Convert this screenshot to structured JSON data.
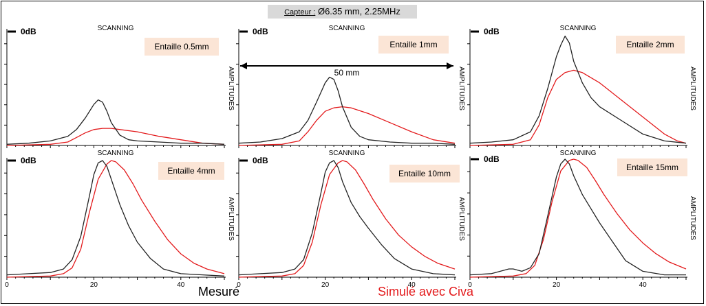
{
  "header": {
    "capteur_label": "Capteur :",
    "capteur_value": "Ø6.35 mm, 2.25MHz"
  },
  "footer": {
    "measured_label": "Mesuré",
    "simulated_label": "Simulé avec Civa"
  },
  "colors": {
    "measured": "#222222",
    "simulated": "#e31a1c",
    "label_bg": "#fbe5d6"
  },
  "chart_data": [
    {
      "type": "line",
      "title": "Entaille 0.5mm",
      "xlabel": "SCANNING",
      "ylabel": "AMPLITUDES",
      "ref_label": "0dB",
      "xlim": [
        0,
        50
      ],
      "ylim": [
        0,
        1
      ],
      "series": [
        {
          "name": "Mesuré",
          "x": [
            0,
            5,
            10,
            14,
            16,
            18,
            20,
            21,
            22,
            23,
            24,
            26,
            28,
            30,
            35,
            40,
            45,
            50
          ],
          "y": [
            0.01,
            0.02,
            0.04,
            0.08,
            0.14,
            0.24,
            0.36,
            0.4,
            0.38,
            0.3,
            0.2,
            0.09,
            0.05,
            0.04,
            0.03,
            0.02,
            0.02,
            0.01
          ]
        },
        {
          "name": "Simulé avec Civa",
          "x": [
            0,
            10,
            14,
            16,
            18,
            20,
            22,
            24,
            26,
            30,
            35,
            40,
            45,
            50
          ],
          "y": [
            0,
            0.01,
            0.03,
            0.07,
            0.11,
            0.14,
            0.15,
            0.15,
            0.14,
            0.12,
            0.08,
            0.05,
            0.02,
            0.01
          ]
        }
      ]
    },
    {
      "type": "line",
      "title": "Entaille 1mm",
      "xlabel": "SCANNING",
      "ylabel": "AMPLITUDES",
      "ref_label": "0dB",
      "xlim": [
        0,
        50
      ],
      "ylim": [
        0,
        1
      ],
      "annotation": {
        "text": "50 mm",
        "from": 0,
        "to": 50
      },
      "series": [
        {
          "name": "Mesuré",
          "x": [
            0,
            5,
            10,
            14,
            16,
            18,
            20,
            21,
            22,
            23,
            24,
            26,
            28,
            30,
            35,
            40,
            45,
            50
          ],
          "y": [
            0.02,
            0.03,
            0.06,
            0.12,
            0.22,
            0.38,
            0.55,
            0.6,
            0.58,
            0.48,
            0.34,
            0.16,
            0.08,
            0.05,
            0.03,
            0.02,
            0.02,
            0.01
          ]
        },
        {
          "name": "Simulé avec Civa",
          "x": [
            0,
            10,
            14,
            16,
            18,
            20,
            22,
            24,
            26,
            30,
            35,
            40,
            45,
            50
          ],
          "y": [
            0,
            0.01,
            0.04,
            0.12,
            0.22,
            0.3,
            0.33,
            0.34,
            0.33,
            0.28,
            0.2,
            0.12,
            0.05,
            0.02
          ]
        }
      ]
    },
    {
      "type": "line",
      "title": "Entaille 2mm",
      "xlabel": "SCANNING",
      "ylabel": "AMPLITUDES",
      "ref_label": "0dB",
      "xlim": [
        0,
        50
      ],
      "ylim": [
        0,
        1
      ],
      "series": [
        {
          "name": "Mesuré",
          "x": [
            0,
            5,
            10,
            14,
            16,
            18,
            20,
            21,
            22,
            23,
            24,
            26,
            28,
            30,
            35,
            40,
            45,
            50
          ],
          "y": [
            0.02,
            0.03,
            0.05,
            0.12,
            0.26,
            0.5,
            0.78,
            0.88,
            0.96,
            0.9,
            0.74,
            0.55,
            0.42,
            0.34,
            0.22,
            0.1,
            0.04,
            0.02
          ]
        },
        {
          "name": "Simulé avec Civa",
          "x": [
            0,
            10,
            14,
            16,
            18,
            20,
            22,
            24,
            26,
            30,
            35,
            40,
            45,
            48,
            50
          ],
          "y": [
            0,
            0.01,
            0.05,
            0.18,
            0.42,
            0.58,
            0.64,
            0.66,
            0.64,
            0.55,
            0.4,
            0.25,
            0.1,
            0.04,
            0.02
          ]
        }
      ]
    },
    {
      "type": "line",
      "title": "Entaille 4mm",
      "xlabel": "SCANNING",
      "ylabel": "AMPLITUDES",
      "ref_label": "0dB",
      "xlim": [
        0,
        50
      ],
      "ylim": [
        0,
        1
      ],
      "series": [
        {
          "name": "Mesuré",
          "x": [
            0,
            5,
            10,
            13,
            15,
            17,
            19,
            20,
            21,
            22,
            23,
            24,
            26,
            28,
            30,
            33,
            36,
            40,
            45,
            50
          ],
          "y": [
            0.02,
            0.03,
            0.04,
            0.07,
            0.15,
            0.35,
            0.7,
            0.88,
            0.98,
            1.0,
            0.95,
            0.84,
            0.62,
            0.44,
            0.3,
            0.16,
            0.07,
            0.03,
            0.02,
            0.01
          ]
        },
        {
          "name": "Simulé avec Civa",
          "x": [
            0,
            10,
            13,
            15,
            17,
            19,
            21,
            23,
            24,
            25,
            27,
            29,
            31,
            34,
            37,
            40,
            43,
            46,
            50
          ],
          "y": [
            0,
            0.01,
            0.03,
            0.08,
            0.24,
            0.56,
            0.84,
            0.97,
            1.0,
            0.99,
            0.92,
            0.8,
            0.66,
            0.48,
            0.32,
            0.2,
            0.12,
            0.07,
            0.03
          ]
        }
      ]
    },
    {
      "type": "line",
      "title": "Entaille 10mm",
      "xlabel": "SCANNING",
      "ylabel": "AMPLITUDES",
      "ref_label": "0dB",
      "xlim": [
        0,
        50
      ],
      "ylim": [
        0,
        1
      ],
      "series": [
        {
          "name": "Mesuré",
          "x": [
            0,
            5,
            10,
            13,
            15,
            17,
            19,
            20,
            21,
            22,
            23,
            24,
            26,
            28,
            30,
            33,
            36,
            40,
            45,
            50
          ],
          "y": [
            0.02,
            0.03,
            0.04,
            0.07,
            0.15,
            0.38,
            0.72,
            0.9,
            0.98,
            1.0,
            0.94,
            0.82,
            0.64,
            0.52,
            0.42,
            0.28,
            0.16,
            0.07,
            0.03,
            0.02
          ]
        },
        {
          "name": "Simulé avec Civa",
          "x": [
            0,
            10,
            13,
            15,
            17,
            19,
            21,
            23,
            24,
            25,
            27,
            29,
            31,
            34,
            37,
            40,
            43,
            46,
            50
          ],
          "y": [
            0,
            0.01,
            0.03,
            0.1,
            0.3,
            0.62,
            0.88,
            0.98,
            1.0,
            0.99,
            0.92,
            0.8,
            0.67,
            0.5,
            0.36,
            0.26,
            0.18,
            0.12,
            0.07
          ]
        }
      ]
    },
    {
      "type": "line",
      "title": "Entaille 15mm",
      "xlabel": "SCANNING",
      "ylabel": "AMPLITUDES",
      "ref_label": "0dB",
      "xlim": [
        0,
        50
      ],
      "ylim": [
        0,
        1
      ],
      "series": [
        {
          "name": "Mesuré",
          "x": [
            0,
            5,
            7,
            9,
            10,
            12,
            14,
            16,
            18,
            20,
            21,
            22,
            23,
            24,
            26,
            28,
            30,
            33,
            36,
            40,
            45,
            50
          ],
          "y": [
            0.02,
            0.03,
            0.05,
            0.07,
            0.07,
            0.05,
            0.08,
            0.2,
            0.52,
            0.85,
            0.96,
            1.0,
            0.96,
            0.86,
            0.7,
            0.58,
            0.46,
            0.3,
            0.14,
            0.05,
            0.02,
            0.02
          ]
        },
        {
          "name": "Simulé avec Civa",
          "x": [
            0,
            10,
            13,
            15,
            17,
            19,
            21,
            23,
            24,
            25,
            27,
            29,
            31,
            34,
            37,
            40,
            43,
            46,
            50
          ],
          "y": [
            0,
            0.01,
            0.03,
            0.1,
            0.32,
            0.64,
            0.9,
            0.99,
            1.0,
            0.99,
            0.93,
            0.82,
            0.7,
            0.54,
            0.4,
            0.29,
            0.2,
            0.13,
            0.07
          ]
        }
      ]
    }
  ]
}
